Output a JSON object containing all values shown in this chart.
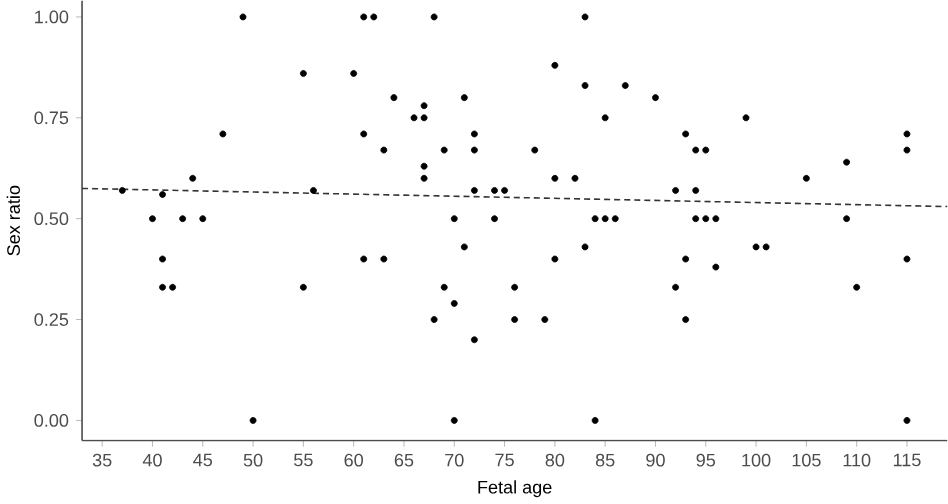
{
  "chart_data": {
    "type": "scatter",
    "xlabel": "Fetal age",
    "ylabel": "Sex ratio",
    "xlim": [
      33,
      119
    ],
    "ylim": [
      -0.05,
      1.04
    ],
    "xticks": [
      35,
      40,
      45,
      50,
      55,
      60,
      65,
      70,
      75,
      80,
      85,
      90,
      95,
      100,
      105,
      110,
      115
    ],
    "yticks": [
      {
        "value": 0,
        "label": "0.00"
      },
      {
        "value": 0.25,
        "label": "0.25"
      },
      {
        "value": 0.5,
        "label": "0.50"
      },
      {
        "value": 0.75,
        "label": "0.75"
      },
      {
        "value": 1,
        "label": "1.00"
      }
    ],
    "grid": false,
    "series": [
      {
        "color": "#000000",
        "marker": "circle",
        "x": [
          37,
          40,
          41,
          41,
          41,
          42,
          43,
          44,
          45,
          47,
          49,
          50,
          55,
          55,
          56,
          60,
          61,
          62,
          68,
          83,
          80,
          83,
          87,
          64,
          71,
          67,
          66,
          67,
          85,
          61,
          72,
          63,
          69,
          72,
          78,
          67,
          67,
          80,
          82,
          72,
          74,
          75,
          70,
          74,
          84,
          85,
          86,
          71,
          83,
          61,
          63,
          80,
          69,
          76,
          70,
          68,
          76,
          79,
          72,
          70,
          84,
          90,
          99,
          93,
          94,
          95,
          115,
          115,
          109,
          105,
          92,
          94,
          94,
          95,
          96,
          109,
          100,
          101,
          93,
          96,
          115,
          92,
          110,
          93,
          115
        ],
        "values": [
          0.57,
          0.5,
          0.56,
          0.4,
          0.33,
          0.33,
          0.5,
          0.6,
          0.5,
          0.71,
          1,
          0,
          0.86,
          0.33,
          0.57,
          0.86,
          1,
          1,
          1,
          1,
          0.88,
          0.83,
          0.83,
          0.8,
          0.8,
          0.78,
          0.75,
          0.75,
          0.75,
          0.71,
          0.71,
          0.67,
          0.67,
          0.67,
          0.67,
          0.63,
          0.6,
          0.6,
          0.6,
          0.57,
          0.57,
          0.57,
          0.5,
          0.5,
          0.5,
          0.5,
          0.5,
          0.43,
          0.43,
          0.4,
          0.4,
          0.4,
          0.33,
          0.33,
          0.29,
          0.25,
          0.25,
          0.25,
          0.2,
          0,
          0,
          0.8,
          0.75,
          0.71,
          0.67,
          0.67,
          0.71,
          0.67,
          0.64,
          0.6,
          0.57,
          0.57,
          0.5,
          0.5,
          0.5,
          0.5,
          0.43,
          0.43,
          0.4,
          0.38,
          0.4,
          0.33,
          0.33,
          0.25,
          0
        ]
      },
      {
        "type": "line",
        "color": "#333333",
        "line_style": "dashed",
        "marker": "none",
        "x": [
          33,
          119
        ],
        "values": [
          0.575,
          0.53
        ]
      }
    ]
  }
}
